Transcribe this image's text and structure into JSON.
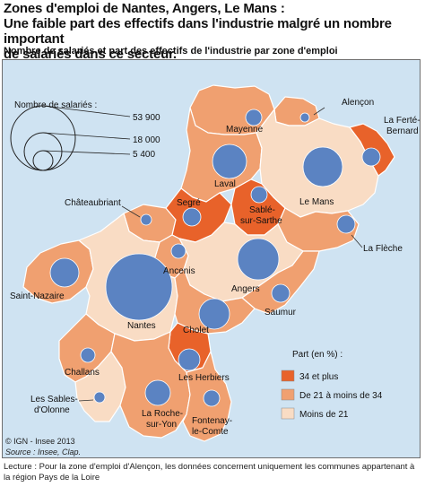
{
  "title_line1": "Zones d'emploi de Nantes, Angers, Le Mans :",
  "title_line2": "Une faible part des effectifs dans l'industrie malgré un nombre important",
  "title_line3": "de salariés dans ce secteur.",
  "subtitle": "Nombre de salariés et part des effectifs de l'industrie par zone d'emploi",
  "size_legend": {
    "title": "Nombre de salariés :",
    "values": [
      "53 900",
      "18 000",
      "5 400"
    ]
  },
  "color_legend": {
    "title": "Part (en %) :",
    "classes": [
      {
        "label": "34 et plus",
        "color": "#e8622a"
      },
      {
        "label": "De 21 à moins de 34",
        "color": "#f0a070"
      },
      {
        "label": "Moins de 21",
        "color": "#f9dcc4"
      }
    ]
  },
  "zones": [
    {
      "name": "Alençon",
      "class": "mid"
    },
    {
      "name": "La Ferté-Bernard",
      "class": "high"
    },
    {
      "name": "Mayenne",
      "class": "mid"
    },
    {
      "name": "Laval",
      "class": "mid"
    },
    {
      "name": "Le Mans",
      "class": "low"
    },
    {
      "name": "Château-briant",
      "class": "mid"
    },
    {
      "name": "Segré",
      "class": "high"
    },
    {
      "name": "Sablé-sur-Sarthe",
      "class": "high"
    },
    {
      "name": "La Flèche",
      "class": "mid"
    },
    {
      "name": "Ancenis",
      "class": "mid"
    },
    {
      "name": "Saint-Nazaire",
      "class": "mid"
    },
    {
      "name": "Nantes",
      "class": "low"
    },
    {
      "name": "Angers",
      "class": "low"
    },
    {
      "name": "Saumur",
      "class": "mid"
    },
    {
      "name": "Cholet",
      "class": "mid"
    },
    {
      "name": "Les Herbiers",
      "class": "high"
    },
    {
      "name": "Challans",
      "class": "mid"
    },
    {
      "name": "Les Sables-d'Olonne",
      "class": "low"
    },
    {
      "name": "La Roche-sur-Yon",
      "class": "mid"
    },
    {
      "name": "Fontenay-le-Comte",
      "class": "mid"
    }
  ],
  "labels": {
    "alencon": "Alençon",
    "laferte1": "La Ferté-",
    "laferte2": "Bernard",
    "mayenne": "Mayenne",
    "laval": "Laval",
    "lemans": "Le Mans",
    "chateaubriant": "Châteaubriant",
    "segre": "Segré",
    "sable1": "Sablé-",
    "sable2": "sur-Sarthe",
    "lafleche": "La Flèche",
    "ancenis": "Ancenis",
    "saintnazaire": "Saint-Nazaire",
    "nantes": "Nantes",
    "angers": "Angers",
    "saumur": "Saumur",
    "cholet": "Cholet",
    "herbiers": "Les Herbiers",
    "challans": "Challans",
    "sables1": "Les Sables-",
    "sables2": "d'Olonne",
    "roche1": "La Roche-",
    "roche2": "sur-Yon",
    "fontenay1": "Fontenay-",
    "fontenay2": "le-Comte"
  },
  "credits": {
    "copyright": "© IGN - Insee 2013",
    "source": "Source : Insee, Clap."
  },
  "footer_note": "Lecture : Pour la zone d'emploi d'Alençon, les données concernent uniquement les communes appartenant à la région Pays de la Loire",
  "colors": {
    "high": "#e8622a",
    "mid": "#f0a070",
    "low": "#f9dcc4",
    "bubble": "#5b83c2",
    "sea": "#cfe3f2",
    "outside": "#ffffff"
  }
}
